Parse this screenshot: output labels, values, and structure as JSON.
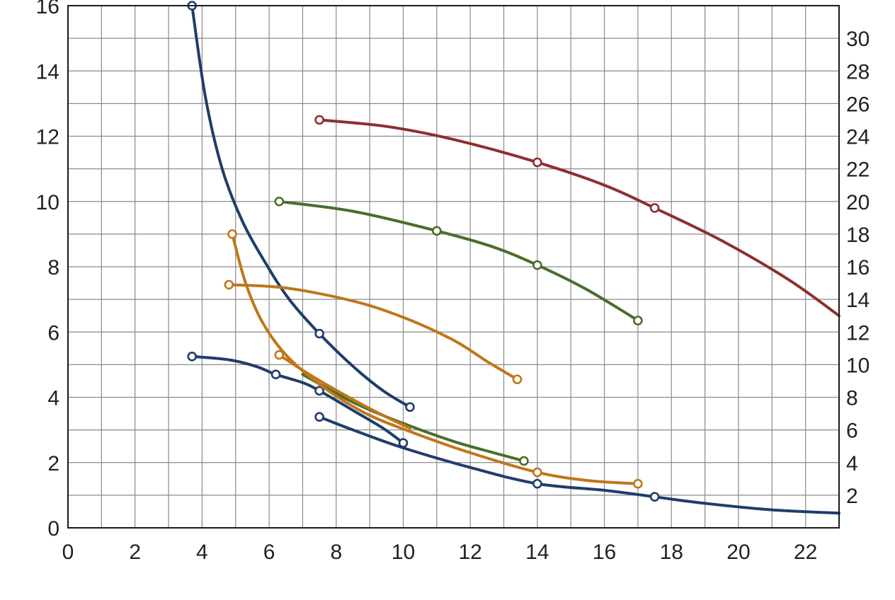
{
  "chart_data": {
    "type": "line",
    "title": "",
    "xlabel": "",
    "ylabel": "",
    "y2label": "",
    "xlim": [
      0,
      23
    ],
    "ylim": [
      0,
      16
    ],
    "y2lim": [
      0,
      32
    ],
    "x_ticks": [
      "0",
      "2",
      "4",
      "6",
      "8",
      "10",
      "12",
      "14",
      "16",
      "18",
      "20",
      "22"
    ],
    "y_ticks": [
      "0",
      "2",
      "4",
      "6",
      "8",
      "10",
      "12",
      "14",
      "16"
    ],
    "y2_ticks": [
      "2",
      "4",
      "6",
      "8",
      "10",
      "12",
      "14",
      "16",
      "18",
      "20",
      "22",
      "24",
      "26",
      "28",
      "30"
    ],
    "grid": true,
    "legend": "none",
    "series": [
      {
        "color": "#1f3d6b",
        "points": [
          [
            3.7,
            16.0
          ],
          [
            4.1,
            13.2
          ],
          [
            4.6,
            11.0
          ],
          [
            5.2,
            9.4
          ],
          [
            5.9,
            8.1
          ],
          [
            6.6,
            7.0
          ],
          [
            7.5,
            5.95
          ],
          [
            8.5,
            4.95
          ],
          [
            9.4,
            4.2
          ],
          [
            10.2,
            3.7
          ]
        ],
        "markers": [
          [
            3.7,
            16.0
          ],
          [
            7.5,
            5.95
          ],
          [
            10.2,
            3.7
          ]
        ]
      },
      {
        "color": "#1f3d6b",
        "points": [
          [
            3.7,
            5.25
          ],
          [
            4.8,
            5.15
          ],
          [
            5.6,
            4.95
          ],
          [
            6.2,
            4.7
          ],
          [
            7.0,
            4.45
          ],
          [
            7.5,
            4.2
          ],
          [
            8.5,
            3.6
          ],
          [
            9.4,
            3.05
          ],
          [
            10.0,
            2.6
          ]
        ],
        "markers": [
          [
            3.7,
            5.25
          ],
          [
            6.2,
            4.7
          ],
          [
            7.5,
            4.2
          ],
          [
            10.0,
            2.6
          ]
        ]
      },
      {
        "color": "#1f3d6b",
        "points": [
          [
            7.5,
            3.4
          ],
          [
            8.5,
            3.0
          ],
          [
            10.0,
            2.45
          ],
          [
            12.0,
            1.85
          ],
          [
            14.0,
            1.35
          ],
          [
            16.0,
            1.15
          ],
          [
            17.5,
            0.95
          ],
          [
            19.0,
            0.75
          ],
          [
            21.0,
            0.55
          ],
          [
            23.0,
            0.45
          ]
        ],
        "markers": [
          [
            7.5,
            3.4
          ],
          [
            14.0,
            1.35
          ],
          [
            17.5,
            0.95
          ]
        ]
      },
      {
        "color": "#8e2f2f",
        "points": [
          [
            7.5,
            12.5
          ],
          [
            9.5,
            12.3
          ],
          [
            11.5,
            11.9
          ],
          [
            14.0,
            11.2
          ],
          [
            16.0,
            10.5
          ],
          [
            17.5,
            9.8
          ],
          [
            19.5,
            8.8
          ],
          [
            21.5,
            7.6
          ],
          [
            23.0,
            6.5
          ]
        ],
        "markers": [
          [
            7.5,
            12.5
          ],
          [
            14.0,
            11.2
          ],
          [
            17.5,
            9.8
          ]
        ]
      },
      {
        "color": "#4a6e2c",
        "points": [
          [
            6.3,
            10.0
          ],
          [
            8.5,
            9.7
          ],
          [
            11.0,
            9.1
          ],
          [
            12.7,
            8.6
          ],
          [
            14.0,
            8.05
          ],
          [
            15.3,
            7.4
          ],
          [
            16.3,
            6.8
          ],
          [
            17.0,
            6.35
          ]
        ],
        "markers": [
          [
            6.3,
            10.0
          ],
          [
            11.0,
            9.1
          ],
          [
            14.0,
            8.05
          ],
          [
            17.0,
            6.35
          ]
        ]
      },
      {
        "color": "#4a6e2c",
        "points": [
          [
            7.0,
            4.7
          ],
          [
            8.5,
            3.85
          ],
          [
            10.0,
            3.2
          ],
          [
            11.5,
            2.65
          ],
          [
            12.7,
            2.3
          ],
          [
            13.6,
            2.05
          ]
        ],
        "markers": [
          [
            13.6,
            2.05
          ]
        ]
      },
      {
        "color": "#c0761a",
        "points": [
          [
            4.9,
            9.0
          ],
          [
            5.3,
            7.5
          ],
          [
            5.8,
            6.3
          ],
          [
            6.5,
            5.3
          ],
          [
            7.5,
            4.4
          ],
          [
            8.8,
            3.55
          ],
          [
            10.2,
            2.95
          ],
          [
            12.0,
            2.3
          ],
          [
            14.0,
            1.7
          ],
          [
            15.5,
            1.45
          ],
          [
            17.0,
            1.35
          ]
        ],
        "markers": [
          [
            4.9,
            9.0
          ],
          [
            14.0,
            1.7
          ],
          [
            17.0,
            1.35
          ]
        ]
      },
      {
        "color": "#c0761a",
        "points": [
          [
            4.8,
            7.45
          ],
          [
            6.5,
            7.35
          ],
          [
            8.5,
            6.95
          ],
          [
            10.0,
            6.45
          ],
          [
            11.5,
            5.75
          ],
          [
            12.5,
            5.1
          ],
          [
            13.4,
            4.55
          ]
        ],
        "markers": [
          [
            4.8,
            7.45
          ],
          [
            13.4,
            4.55
          ]
        ]
      },
      {
        "color": "#c0761a",
        "points": [
          [
            6.3,
            5.3
          ],
          [
            7.2,
            4.7
          ],
          [
            8.2,
            4.1
          ],
          [
            9.2,
            3.55
          ],
          [
            10.2,
            3.05
          ]
        ],
        "markers": [
          [
            6.3,
            5.3
          ]
        ]
      }
    ]
  }
}
